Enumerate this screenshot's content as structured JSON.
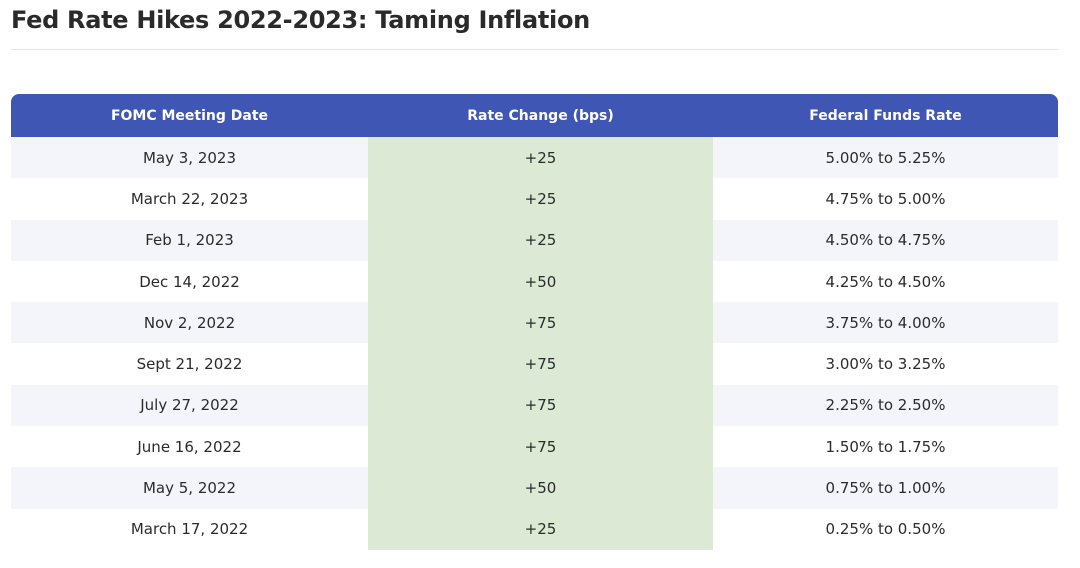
{
  "page": {
    "title": "Fed Rate Hikes 2022-2023: Taming Inflation"
  },
  "table": {
    "headers": {
      "date": "FOMC Meeting Date",
      "change": "Rate Change (bps)",
      "rate": "Federal Funds Rate"
    },
    "rows": [
      {
        "date": "May 3, 2023",
        "change": "+25",
        "rate": "5.00% to 5.25%"
      },
      {
        "date": "March 22, 2023",
        "change": "+25",
        "rate": "4.75% to 5.00%"
      },
      {
        "date": "Feb 1, 2023",
        "change": "+25",
        "rate": "4.50% to 4.75%"
      },
      {
        "date": "Dec 14, 2022",
        "change": "+50",
        "rate": "4.25% to 4.50%"
      },
      {
        "date": "Nov 2, 2022",
        "change": "+75",
        "rate": "3.75% to 4.00%"
      },
      {
        "date": "Sept 21, 2022",
        "change": "+75",
        "rate": "3.00% to 3.25%"
      },
      {
        "date": "July 27, 2022",
        "change": "+75",
        "rate": "2.25% to 2.50%"
      },
      {
        "date": "June 16, 2022",
        "change": "+75",
        "rate": "1.50% to 1.75%"
      },
      {
        "date": "May 5, 2022",
        "change": "+50",
        "rate": "0.75% to 1.00%"
      },
      {
        "date": "March 17, 2022",
        "change": "+25",
        "rate": "0.25% to 0.50%"
      }
    ]
  },
  "colors": {
    "header_background": "#4056b4",
    "header_text": "#ffffff",
    "striped_row": "#f4f5fa",
    "highlight_column": "#dce9d5"
  }
}
